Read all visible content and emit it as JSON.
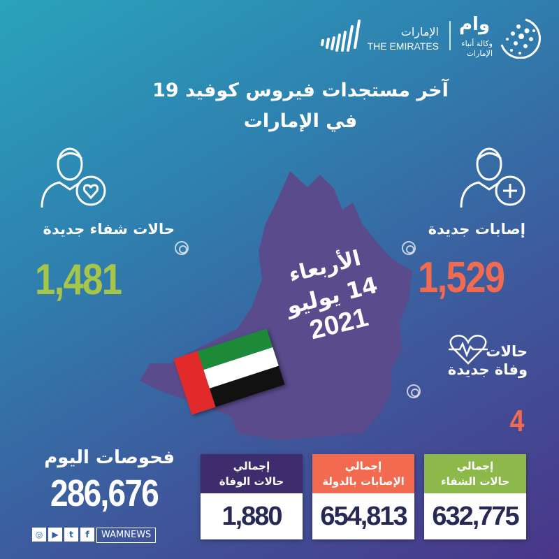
{
  "header": {
    "emirates_logo_ar": "الإمارات",
    "emirates_logo_en": "THE EMIRATES",
    "wam_logo": "وام",
    "wam_subtitle_1": "وكالة أنباء",
    "wam_subtitle_2": "الإمارات"
  },
  "title": {
    "line1": "آخر مستجدات فيروس كوفيد 19",
    "line2": "في الإمارات"
  },
  "recoveries": {
    "label": "حالات شفاء جديدة",
    "value": "1,481",
    "color": "#a6c649",
    "icon": "person-heart-icon"
  },
  "cases": {
    "label": "إصابات جديدة",
    "value": "1,529",
    "color": "#f26a50",
    "icon": "person-plus-icon"
  },
  "deaths": {
    "label_1": "حالات",
    "label_2": "وفاة جديدة",
    "value": "4",
    "color": "#f26a50",
    "icon": "heart-pulse-icon"
  },
  "date": {
    "day": "الأربعاء",
    "date": "14 يوليو",
    "year": "2021"
  },
  "tests": {
    "label": "فحوصات اليوم",
    "value": "286,676"
  },
  "totals": [
    {
      "label_1": "إجمالي",
      "label_2": "حالات الوفاة",
      "value": "1,880",
      "color": "#3d2d6c"
    },
    {
      "label_1": "إجمالي",
      "label_2": "الإصابات بالدولة",
      "value": "654,813",
      "color": "#f26a50"
    },
    {
      "label_1": "إجمالي",
      "label_2": "حالات الشفاء",
      "value": "632,775",
      "color": "#8db94a"
    }
  ],
  "social": {
    "handle": "WAMNEWS",
    "icons": [
      "instagram-icon",
      "youtube-icon",
      "twitter-icon",
      "facebook-icon"
    ]
  }
}
